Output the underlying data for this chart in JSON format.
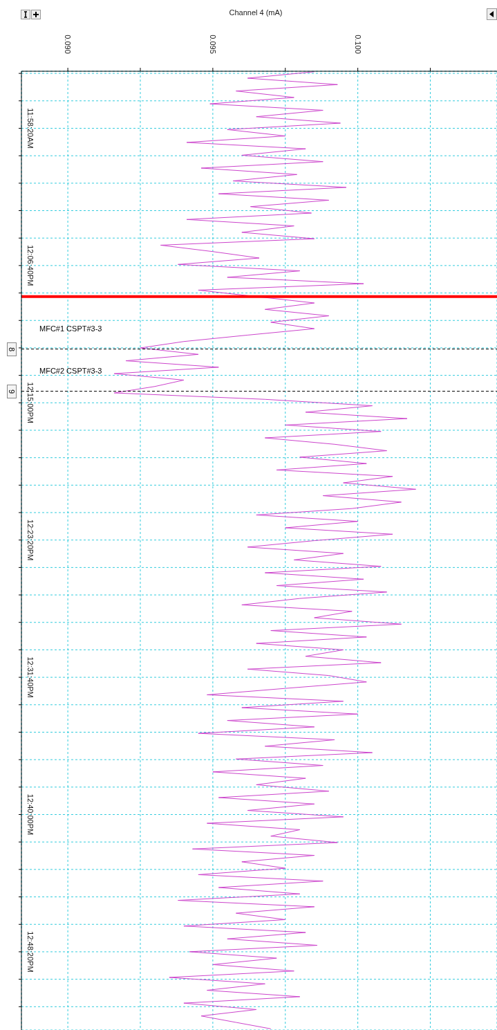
{
  "chart_data": {
    "type": "line",
    "orientation": "horizontal",
    "xlabel": "Channel 4 (mA)",
    "x": [
      11.915,
      11.9215,
      11.928,
      11.9345,
      11.941,
      11.9475,
      11.954,
      11.9605,
      11.967,
      11.9735,
      11.98,
      11.9865,
      11.993,
      11.9995,
      12.006,
      12.0125,
      12.019,
      12.0255,
      12.032,
      12.0385,
      12.045,
      12.0515,
      12.058,
      12.0645,
      12.071,
      12.0775,
      12.084,
      12.0905,
      12.097,
      12.1035,
      12.11,
      12.1165,
      12.123,
      12.1295,
      12.136,
      12.1425,
      12.149,
      12.1555,
      12.162,
      12.1685,
      12.175,
      12.1815,
      12.188,
      12.1945,
      12.201,
      12.2075,
      12.214,
      12.2205,
      12.227,
      12.2335,
      12.24,
      12.2465,
      12.253,
      12.2595,
      12.266,
      12.2725,
      12.279,
      12.2855,
      12.292,
      12.2985,
      12.305,
      12.3115,
      12.318,
      12.3245,
      12.331,
      12.3375,
      12.344,
      12.3505,
      12.357,
      12.3635,
      12.37,
      12.3765,
      12.383,
      12.3895,
      12.396,
      12.4025,
      12.409,
      12.4155,
      12.422,
      12.4285,
      12.435,
      12.4415,
      12.448,
      12.4545,
      12.461,
      12.4675,
      12.474,
      12.4805,
      12.487,
      12.4935,
      12.5,
      12.5065,
      12.513,
      12.5195,
      12.526,
      12.5325,
      12.539,
      12.5455,
      12.552,
      12.5585,
      12.565,
      12.5715,
      12.578,
      12.5845,
      12.591,
      12.5975,
      12.604,
      12.6105,
      12.617,
      12.6235,
      12.63,
      12.6365,
      12.643,
      12.6495,
      12.656,
      12.6625,
      12.669,
      12.6755,
      12.682,
      12.6885,
      12.695,
      12.7015,
      12.708,
      12.7145,
      12.721,
      12.7275,
      12.734,
      12.7405,
      12.747,
      12.7535,
      12.76,
      12.7665,
      12.773,
      12.7795,
      12.786,
      12.7925,
      12.799,
      12.8055,
      12.812,
      12.8185,
      12.825,
      12.8315,
      12.838,
      12.8445,
      12.851,
      12.8575,
      12.864,
      12.8705,
      12.877,
      12.8835
    ],
    "series": [
      {
        "color": "#cc44cc",
        "values": [
          0.0985,
          0.0962,
          0.0993,
          0.0958,
          0.0978,
          0.0949,
          0.0988,
          0.0965,
          0.0994,
          0.0955,
          0.0975,
          0.0941,
          0.0982,
          0.096,
          0.0988,
          0.0946,
          0.0979,
          0.0957,
          0.0996,
          0.0952,
          0.099,
          0.0963,
          0.0984,
          0.0941,
          0.0978,
          0.096,
          0.0985,
          0.0932,
          0.095,
          0.0966,
          0.0938,
          0.098,
          0.0955,
          0.1002,
          0.0945,
          null,
          0.0985,
          0.0968,
          0.099,
          0.097,
          0.0985,
          0.0962,
          0.094,
          0.0925,
          0.0945,
          0.092,
          0.0952,
          0.0916,
          0.094,
          0.093,
          0.0916,
          0.0968,
          0.1005,
          0.0982,
          0.1017,
          0.0975,
          0.1008,
          0.0968,
          0.0992,
          0.101,
          0.098,
          0.1003,
          0.0972,
          0.1012,
          0.0995,
          0.102,
          0.0988,
          0.1015,
          0.0998,
          0.0965,
          0.1,
          0.0975,
          0.1012,
          0.0985,
          0.0962,
          0.0995,
          0.0978,
          0.1008,
          0.0968,
          0.1002,
          0.0972,
          0.101,
          0.098,
          0.096,
          0.0998,
          0.0985,
          0.1015,
          0.097,
          0.1003,
          0.0965,
          0.0995,
          0.0982,
          0.1008,
          0.0962,
          0.099,
          0.1003,
          0.0975,
          0.0948,
          0.0995,
          0.096,
          0.1,
          0.0955,
          0.0985,
          0.0945,
          0.0992,
          0.0968,
          0.1005,
          0.0958,
          0.0988,
          0.095,
          0.0982,
          0.0965,
          0.099,
          0.0952,
          0.0985,
          0.0962,
          0.0995,
          0.0948,
          0.098,
          0.097,
          0.0993,
          0.0943,
          0.0985,
          0.096,
          0.0975,
          0.0945,
          0.0988,
          0.0952,
          0.098,
          0.0938,
          0.0985,
          0.0958,
          0.0975,
          0.094,
          0.0982,
          0.0955,
          0.0986,
          0.0942,
          0.0972,
          0.095,
          0.0978,
          0.0935,
          0.0968,
          0.0948,
          0.098,
          0.094,
          0.0965,
          0.0946,
          0.0958,
          0.097
        ]
      }
    ],
    "xlim": [
      0.0884,
      0.1048
    ],
    "xticks": [
      {
        "value": 0.09,
        "label": "0.090"
      },
      {
        "value": 0.0925,
        "label": null
      },
      {
        "value": 0.095,
        "label": "0.095"
      },
      {
        "value": 0.0975,
        "label": null
      },
      {
        "value": 0.1,
        "label": "0.100"
      },
      {
        "value": 0.1025,
        "label": null
      }
    ],
    "ylim": [
      12.8847,
      11.9145
    ],
    "yticks": [
      {
        "value": 11.91667,
        "label": null
      },
      {
        "value": 11.94444,
        "label": null
      },
      {
        "value": 11.97222,
        "label": "11:58:20AM"
      },
      {
        "value": 12.0,
        "label": null
      },
      {
        "value": 12.02778,
        "label": null
      },
      {
        "value": 12.05556,
        "label": null
      },
      {
        "value": 12.08333,
        "label": null
      },
      {
        "value": 12.11111,
        "label": "12:06:40PM"
      },
      {
        "value": 12.13889,
        "label": null
      },
      {
        "value": 12.16667,
        "label": null
      },
      {
        "value": 12.19444,
        "label": null
      },
      {
        "value": 12.22222,
        "label": null
      },
      {
        "value": 12.25,
        "label": "12:15:00PM"
      },
      {
        "value": 12.27778,
        "label": null
      },
      {
        "value": 12.30556,
        "label": null
      },
      {
        "value": 12.33333,
        "label": null
      },
      {
        "value": 12.36111,
        "label": null
      },
      {
        "value": 12.38889,
        "label": "12:23:20PM"
      },
      {
        "value": 12.41667,
        "label": null
      },
      {
        "value": 12.44444,
        "label": null
      },
      {
        "value": 12.47222,
        "label": null
      },
      {
        "value": 12.5,
        "label": null
      },
      {
        "value": 12.52778,
        "label": "12:31:40PM"
      },
      {
        "value": 12.55556,
        "label": null
      },
      {
        "value": 12.58333,
        "label": null
      },
      {
        "value": 12.61111,
        "label": null
      },
      {
        "value": 12.63889,
        "label": null
      },
      {
        "value": 12.66667,
        "label": "12:40:00PM"
      },
      {
        "value": 12.69444,
        "label": null
      },
      {
        "value": 12.72222,
        "label": null
      },
      {
        "value": 12.75,
        "label": null
      },
      {
        "value": 12.77778,
        "label": null
      },
      {
        "value": 12.80556,
        "label": "12:48:20PM"
      },
      {
        "value": 12.83333,
        "label": null
      },
      {
        "value": 12.86111,
        "label": null
      }
    ],
    "grid": true,
    "ref_lines": [
      {
        "axis": "y",
        "value": 12.1425,
        "color": "#ff0000",
        "line_style": "solid"
      },
      {
        "axis": "y",
        "value": 12.1956,
        "label": "MFC#1 CSPT#3-3",
        "color": "#000000",
        "line_style": "dashed"
      },
      {
        "axis": "y",
        "value": 12.2383,
        "label": "MFC#2 CSPT#3-3",
        "color": "#000000",
        "line_style": "dashed"
      }
    ],
    "annotations": [
      "8",
      "9"
    ]
  }
}
